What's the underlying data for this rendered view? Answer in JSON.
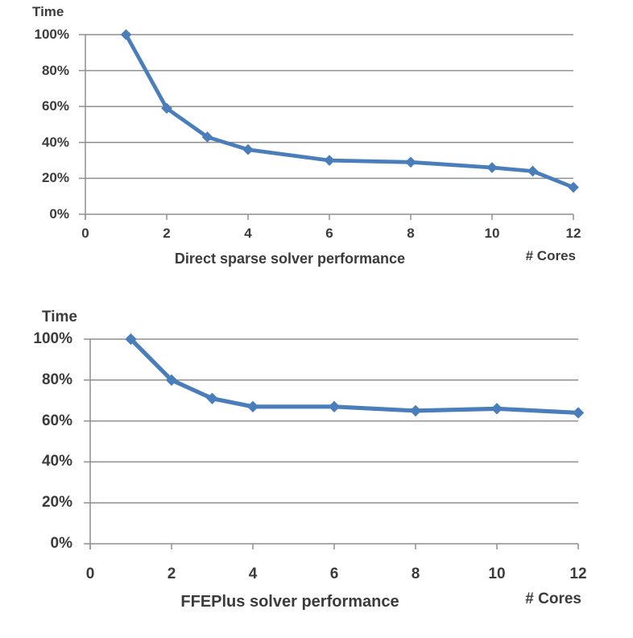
{
  "page": {
    "background": "#ffffff",
    "text_color": "#3b3b3b"
  },
  "chart_data": [
    {
      "type": "line",
      "title": "Direct sparse solver performance",
      "ylabel": "Time",
      "xlabel": "# Cores",
      "x": [
        1,
        2,
        3,
        4,
        6,
        8,
        10,
        11,
        12
      ],
      "values": [
        100,
        59,
        43,
        36,
        30,
        29,
        26,
        24,
        15
      ],
      "unit": "%",
      "xlim": [
        0,
        12
      ],
      "ylim": [
        0,
        100
      ],
      "x_ticks": [
        0,
        2,
        4,
        6,
        8,
        10,
        12
      ],
      "y_ticks": [
        0,
        20,
        40,
        60,
        80,
        100
      ],
      "y_tick_labels": [
        "0%",
        "20%",
        "40%",
        "60%",
        "80%",
        "100%"
      ],
      "grid": true,
      "legend": "none",
      "marker": "diamond",
      "line_color": "#4a7ebb",
      "axis_color": "#8f8f8f"
    },
    {
      "type": "line",
      "title": "FFEPlus solver performance",
      "ylabel": "Time",
      "xlabel": "# Cores",
      "x": [
        1,
        2,
        3,
        4,
        6,
        8,
        10,
        12
      ],
      "values": [
        100,
        80,
        71,
        67,
        67,
        65,
        66,
        64
      ],
      "unit": "%",
      "xlim": [
        0,
        12
      ],
      "ylim": [
        0,
        100
      ],
      "x_ticks": [
        0,
        2,
        4,
        6,
        8,
        10,
        12
      ],
      "y_ticks": [
        0,
        20,
        40,
        60,
        80,
        100
      ],
      "y_tick_labels": [
        "0%",
        "20%",
        "40%",
        "60%",
        "80%",
        "100%"
      ],
      "grid": true,
      "legend": "none",
      "marker": "diamond",
      "line_color": "#4a7ebb",
      "axis_color": "#8f8f8f"
    }
  ]
}
